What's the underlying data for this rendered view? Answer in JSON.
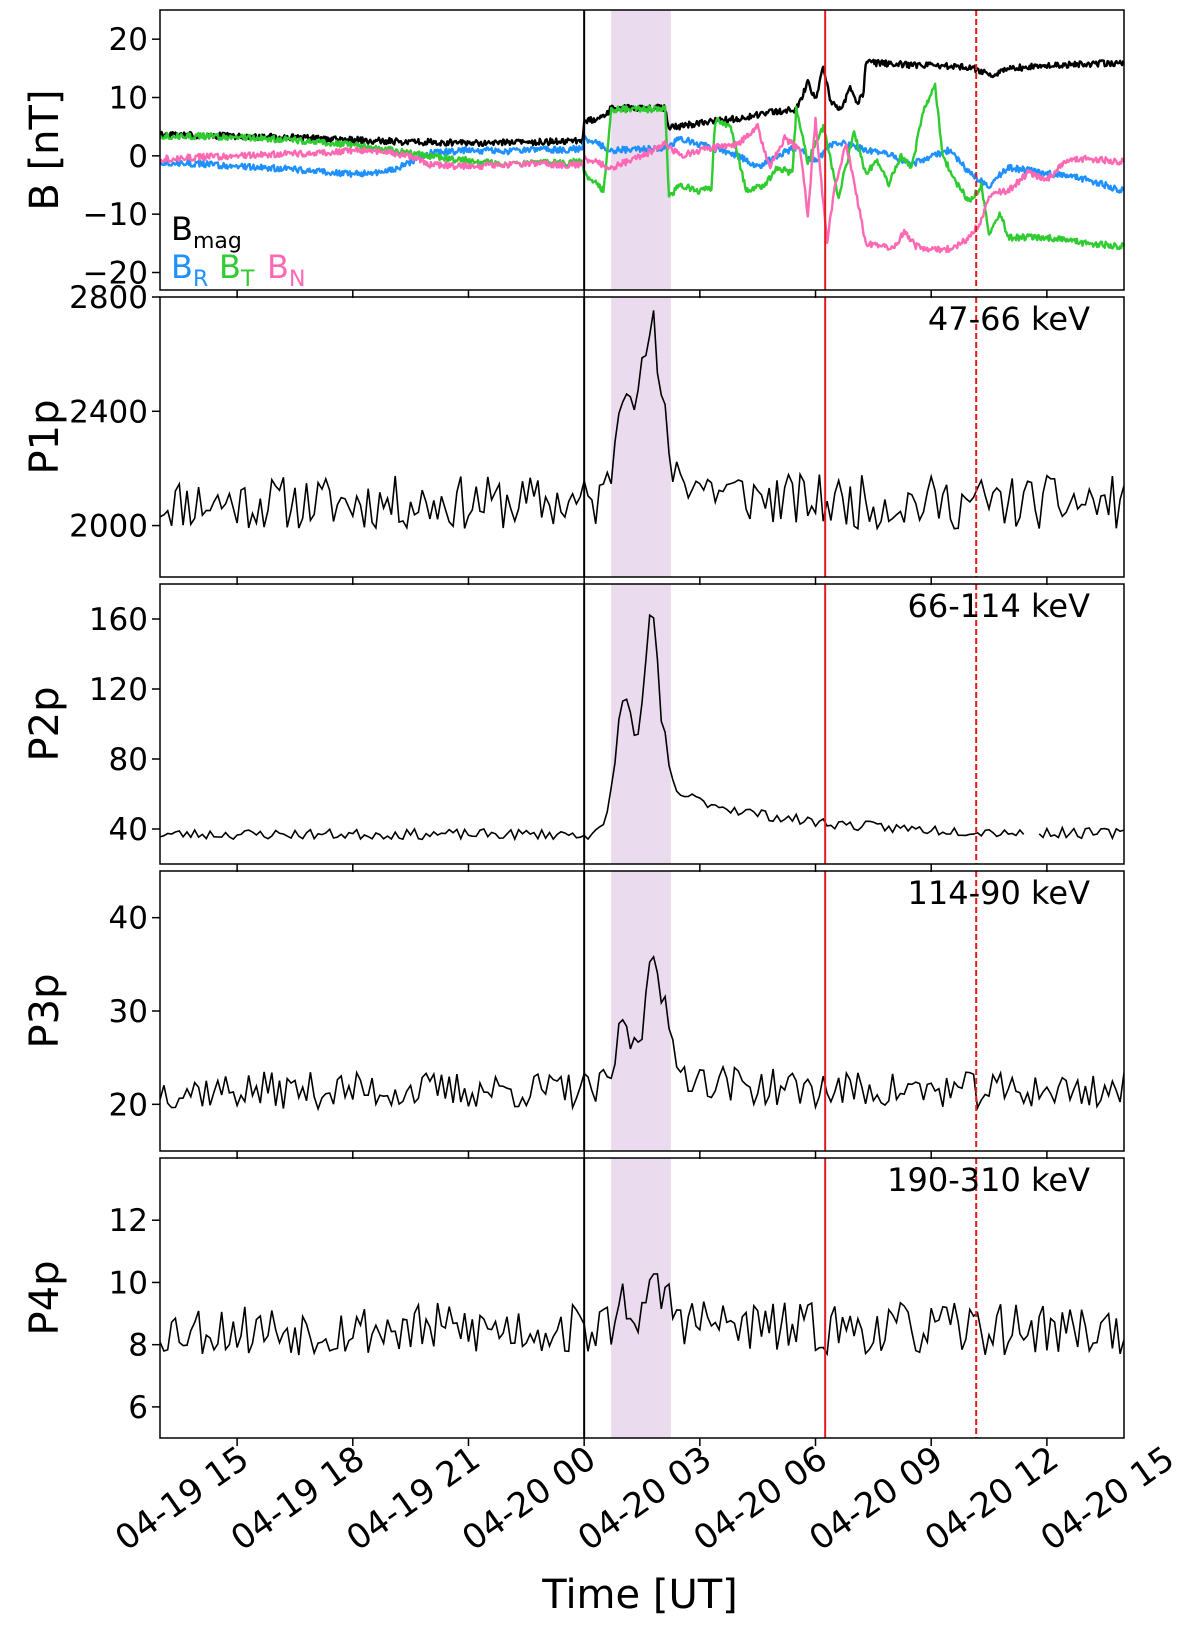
{
  "figure": {
    "xlabel": "Time [UT]",
    "x_range": [
      "2024-04-19 13:00",
      "2024-04-20 14:00"
    ],
    "x_ticks": [
      "04-19 15",
      "04-19 18",
      "04-19 21",
      "04-20 00",
      "04-20 03",
      "04-20 06",
      "04-20 09",
      "04-20 12",
      "04-20 15"
    ],
    "x_tick_times": [
      "2024-04-19 15:00",
      "2024-04-19 18:00",
      "2024-04-19 21:00",
      "2024-04-20 00:00",
      "2024-04-20 03:00",
      "2024-04-20 06:00",
      "2024-04-20 09:00",
      "2024-04-20 12:00",
      "2024-04-20 15:00"
    ],
    "markers": [
      {
        "time": "2024-04-20 00:00",
        "color": "#000000",
        "style": "solid"
      },
      {
        "time": "2024-04-20 06:15",
        "color": "#e8191d",
        "style": "solid"
      },
      {
        "time": "2024-04-20 10:10",
        "color": "#e8191d",
        "style": "dashed"
      }
    ],
    "shaded_interval": {
      "start": "2024-04-20 00:42",
      "end": "2024-04-20 02:15",
      "color": "#eadcee"
    }
  },
  "chart_data": [
    {
      "type": "line",
      "ylabel": "B [nT]",
      "ylim": [
        -23,
        25
      ],
      "yticks": [
        -20,
        -10,
        0,
        10,
        20
      ],
      "ytick_labels": [
        "−20",
        "−10",
        "0",
        "10",
        "20"
      ],
      "legend": [
        {
          "text": "B",
          "sub": "mag",
          "color": "#000000"
        },
        {
          "text": "B",
          "sub": "R",
          "color": "#1e90ff"
        },
        {
          "text": "B",
          "sub": "T",
          "color": "#2ecc2e"
        },
        {
          "text": "B",
          "sub": "N",
          "color": "#ff69b4"
        }
      ],
      "series": [
        {
          "key": "Bmag",
          "color": "#000000",
          "values": [
            [
              13.0,
              3.6
            ],
            [
              15.0,
              3.4
            ],
            [
              17.0,
              3.0
            ],
            [
              18.5,
              2.6
            ],
            [
              19.5,
              2.4
            ],
            [
              21.0,
              2.2
            ],
            [
              22.5,
              2.3
            ],
            [
              23.95,
              2.6
            ],
            [
              24.0,
              6.0
            ],
            [
              24.5,
              6.6
            ],
            [
              24.7,
              8.2
            ],
            [
              26.1,
              8.2
            ],
            [
              26.2,
              4.8
            ],
            [
              27.0,
              5.6
            ],
            [
              28.0,
              6.4
            ],
            [
              28.5,
              7.0
            ],
            [
              29.0,
              7.6
            ],
            [
              29.5,
              8.0
            ],
            [
              29.8,
              12.5
            ],
            [
              30.0,
              9.5
            ],
            [
              30.2,
              15.0
            ],
            [
              30.4,
              9.0
            ],
            [
              30.7,
              8.0
            ],
            [
              30.9,
              12.0
            ],
            [
              31.1,
              9.0
            ],
            [
              31.25,
              11.0
            ],
            [
              31.3,
              16.0
            ],
            [
              32.5,
              15.6
            ],
            [
              34.0,
              15.2
            ],
            [
              34.6,
              13.8
            ],
            [
              35.0,
              15.0
            ],
            [
              36.5,
              15.6
            ],
            [
              38.0,
              16.0
            ]
          ]
        },
        {
          "key": "BR",
          "color": "#1e90ff",
          "values": [
            [
              13.0,
              -1.0
            ],
            [
              15.0,
              -1.8
            ],
            [
              17.0,
              -2.5
            ],
            [
              18.0,
              -3.2
            ],
            [
              19.0,
              -2.5
            ],
            [
              20.0,
              0.5
            ],
            [
              21.0,
              1.0
            ],
            [
              22.0,
              0.8
            ],
            [
              23.95,
              1.2
            ],
            [
              24.0,
              3.0
            ],
            [
              24.7,
              1.0
            ],
            [
              26.1,
              1.2
            ],
            [
              26.5,
              3.0
            ],
            [
              27.0,
              2.0
            ],
            [
              28.0,
              0.0
            ],
            [
              28.5,
              -2.0
            ],
            [
              29.0,
              0.0
            ],
            [
              29.5,
              1.5
            ],
            [
              30.0,
              -1.0
            ],
            [
              30.5,
              2.5
            ],
            [
              31.3,
              1.0
            ],
            [
              32.0,
              0.0
            ],
            [
              32.5,
              -1.5
            ],
            [
              33.0,
              0.0
            ],
            [
              33.5,
              1.0
            ],
            [
              34.0,
              -3.0
            ],
            [
              34.5,
              -5.0
            ],
            [
              35.0,
              -2.0
            ],
            [
              36.0,
              -3.0
            ],
            [
              37.0,
              -4.0
            ],
            [
              38.0,
              -6.0
            ]
          ]
        },
        {
          "key": "BT",
          "color": "#2ecc2e",
          "values": [
            [
              13.0,
              3.5
            ],
            [
              15.0,
              3.2
            ],
            [
              17.0,
              2.5
            ],
            [
              18.5,
              1.5
            ],
            [
              19.5,
              0.5
            ],
            [
              20.5,
              -0.5
            ],
            [
              22.0,
              -1.5
            ],
            [
              23.95,
              -1.0
            ],
            [
              24.0,
              -3.0
            ],
            [
              24.5,
              -6.0
            ],
            [
              24.7,
              8.0
            ],
            [
              26.1,
              8.0
            ],
            [
              26.2,
              -7.0
            ],
            [
              26.5,
              -5.0
            ],
            [
              27.0,
              -6.0
            ],
            [
              27.3,
              -5.5
            ],
            [
              27.4,
              6.0
            ],
            [
              27.8,
              5.0
            ],
            [
              28.2,
              -6.0
            ],
            [
              28.7,
              -5.0
            ],
            [
              29.0,
              -2.0
            ],
            [
              29.4,
              -3.0
            ],
            [
              29.5,
              8.0
            ],
            [
              29.8,
              -1.0
            ],
            [
              30.2,
              5.0
            ],
            [
              30.6,
              -7.0
            ],
            [
              31.0,
              4.0
            ],
            [
              31.3,
              -3.0
            ],
            [
              31.6,
              -1.0
            ],
            [
              31.9,
              -5.0
            ],
            [
              32.2,
              0.0
            ],
            [
              32.5,
              -2.0
            ],
            [
              32.8,
              8.0
            ],
            [
              33.1,
              12.0
            ],
            [
              33.3,
              0.0
            ],
            [
              33.6,
              -4.0
            ],
            [
              34.0,
              -8.0
            ],
            [
              34.3,
              -5.0
            ],
            [
              34.5,
              -13.0
            ],
            [
              34.8,
              -10.0
            ],
            [
              35.0,
              -14.0
            ],
            [
              36.0,
              -14.0
            ],
            [
              37.0,
              -15.0
            ],
            [
              38.0,
              -15.5
            ]
          ]
        },
        {
          "key": "BN",
          "color": "#ff69b4",
          "values": [
            [
              13.0,
              -0.5
            ],
            [
              15.0,
              0.0
            ],
            [
              17.0,
              0.5
            ],
            [
              18.5,
              1.0
            ],
            [
              19.5,
              0.0
            ],
            [
              20.0,
              -1.5
            ],
            [
              21.0,
              -1.8
            ],
            [
              22.0,
              -1.5
            ],
            [
              23.95,
              -1.5
            ],
            [
              24.0,
              -0.5
            ],
            [
              24.7,
              -2.0
            ],
            [
              25.5,
              0.0
            ],
            [
              26.1,
              2.0
            ],
            [
              26.5,
              0.0
            ],
            [
              27.0,
              1.0
            ],
            [
              28.0,
              2.0
            ],
            [
              28.5,
              5.0
            ],
            [
              28.8,
              -2.0
            ],
            [
              29.2,
              3.0
            ],
            [
              29.6,
              1.0
            ],
            [
              29.8,
              -10.0
            ],
            [
              30.0,
              6.0
            ],
            [
              30.3,
              -15.0
            ],
            [
              30.5,
              -5.0
            ],
            [
              30.8,
              2.0
            ],
            [
              31.1,
              -8.0
            ],
            [
              31.3,
              -15.0
            ],
            [
              32.0,
              -16.0
            ],
            [
              32.3,
              -13.0
            ],
            [
              32.6,
              -15.5
            ],
            [
              33.0,
              -16.0
            ],
            [
              33.5,
              -16.0
            ],
            [
              34.0,
              -14.0
            ],
            [
              34.3,
              -11.0
            ],
            [
              34.5,
              -6.5
            ],
            [
              35.0,
              -6.0
            ],
            [
              35.5,
              -3.0
            ],
            [
              36.0,
              -4.0
            ],
            [
              36.5,
              -1.0
            ],
            [
              37.0,
              -0.5
            ],
            [
              38.0,
              -1.0
            ]
          ]
        }
      ]
    },
    {
      "type": "line",
      "ylabel": "P1p",
      "label": "47-66 keV",
      "ylim": [
        1820,
        2800
      ],
      "yticks": [
        2000,
        2400,
        2800
      ],
      "base": 2080,
      "noise": 95,
      "peak": {
        "type": "double",
        "p1_time": 25.1,
        "p1_amp": 470,
        "p1_width": 0.35,
        "p2_time": 25.75,
        "p2_amp": 600,
        "p2_width": 0.3,
        "decay": 140
      },
      "seed": 11
    },
    {
      "type": "line",
      "ylabel": "P2p",
      "label": "66-114 keV",
      "ylim": [
        20,
        180
      ],
      "yticks": [
        40,
        80,
        120,
        160
      ],
      "base": 37,
      "noise": 3.0,
      "peak": {
        "type": "double",
        "p1_time": 25.05,
        "p1_amp": 78,
        "p1_width": 0.33,
        "p2_time": 25.75,
        "p2_amp": 125,
        "p2_width": 0.3,
        "decay": 26,
        "decay_tau": 3.0
      },
      "gap": [
        35.5,
        35.8
      ],
      "seed": 23
    },
    {
      "type": "line",
      "ylabel": "P3p",
      "label": "114-90 keV",
      "ylim": [
        15,
        45
      ],
      "yticks": [
        20,
        30,
        40
      ],
      "base": 21.5,
      "noise": 2.0,
      "peak": {
        "type": "double",
        "p1_time": 25.05,
        "p1_amp": 7,
        "p1_width": 0.3,
        "p2_time": 25.8,
        "p2_amp": 16,
        "p2_width": 0.3,
        "decay": 3
      },
      "seed": 37
    },
    {
      "type": "line",
      "ylabel": "P4p",
      "label": "190-310 keV",
      "ylim": [
        5,
        14
      ],
      "yticks": [
        6,
        8,
        10,
        12
      ],
      "base": 8.5,
      "noise": 0.85,
      "peak": {
        "type": "double",
        "p1_time": 25.1,
        "p1_amp": 1.0,
        "p1_width": 0.3,
        "p2_time": 25.9,
        "p2_amp": 1.3,
        "p2_width": 0.3,
        "decay": 0.5
      },
      "seed": 53
    }
  ]
}
